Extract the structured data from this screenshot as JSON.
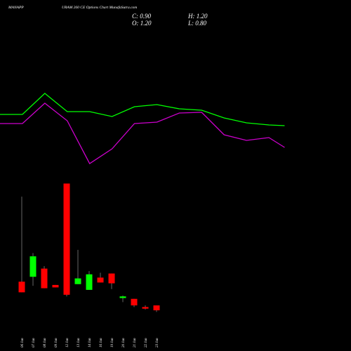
{
  "chart_data": [
    {
      "type": "line",
      "x": [
        0,
        1,
        2,
        3,
        4,
        5,
        6,
        7,
        8,
        9,
        10,
        11,
        12,
        12.7
      ],
      "xlim": [
        0,
        13
      ],
      "ylim": [
        0,
        150
      ],
      "series": [
        {
          "color": "#00ff00",
          "values": [
            87,
            87,
            117,
            91,
            91,
            84,
            98,
            101,
            95,
            93,
            82,
            75,
            72,
            71
          ]
        },
        {
          "color": "#cc00cc",
          "values": [
            74,
            74,
            103,
            78,
            17,
            38,
            74,
            76,
            89,
            90,
            58,
            50,
            54,
            40
          ]
        }
      ]
    },
    {
      "type": "candlestick",
      "title": [
        "MANAPP",
        "URAM 260 CE Options  Chart MunafaSutra.com"
      ],
      "stats": [
        "C: 0.90",
        "H: 1.20",
        "O: 1.20",
        "L: 0.80"
      ],
      "categories": [
        "06 Jan",
        "07 Jan",
        "08 Jan",
        "09 Jan",
        "12 Jan",
        "13 Jan",
        "14 Jan",
        "16 Jan",
        "19 Jan",
        "20 Jan",
        "21 Jan",
        "22 Jan",
        "23 Jan"
      ],
      "open": [
        2.65,
        2.95,
        3.45,
        2.45,
        8.65,
        2.5,
        2.15,
        2.9,
        3.15,
        1.65,
        1.6,
        1.1,
        1.2
      ],
      "high": [
        7.85,
        4.4,
        3.6,
        2.45,
        8.65,
        4.6,
        3.3,
        3.2,
        3.15,
        1.8,
        1.6,
        1.2,
        1.2
      ],
      "low": [
        2.0,
        2.4,
        2.25,
        2.3,
        1.75,
        2.5,
        2.15,
        2.6,
        2.2,
        1.4,
        1.1,
        0.95,
        0.8
      ],
      "close": [
        2.0,
        4.2,
        2.25,
        2.3,
        1.85,
        2.85,
        3.1,
        2.6,
        2.55,
        1.75,
        1.2,
        1.0,
        0.9
      ],
      "ylim": [
        0,
        20
      ],
      "up_color": "#00ff00",
      "down_color": "#ff0000"
    }
  ]
}
